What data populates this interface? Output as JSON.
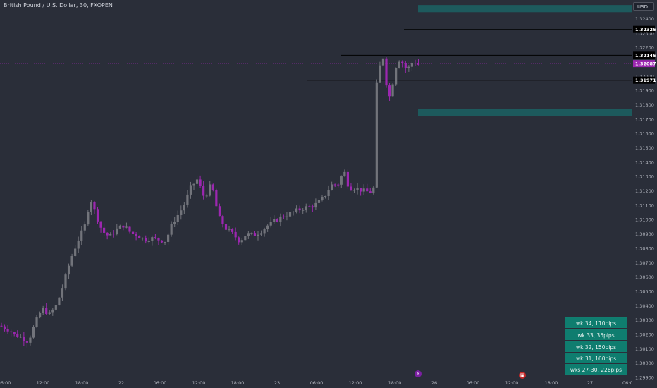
{
  "title": "British Pound / U.S. Dollar, 30, FXOPEN",
  "currency_button": "USD",
  "price_axis_ticks": [
    "1.32400",
    "1.32300",
    "1.32200",
    "1.32000",
    "1.31900",
    "1.31800",
    "1.31700",
    "1.31600",
    "1.31500",
    "1.31400",
    "1.31300",
    "1.31200",
    "1.31100",
    "1.31000",
    "1.30900",
    "1.30800",
    "1.30700",
    "1.30600",
    "1.30500",
    "1.30400",
    "1.30300",
    "1.30200",
    "1.30100",
    "1.30000",
    "1.29900"
  ],
  "time_axis_ticks": [
    "06:00",
    "12:00",
    "18:00",
    "22",
    "06:00",
    "12:00",
    "18:00",
    "23",
    "06:00",
    "12:00",
    "18:00",
    "26",
    "06:00",
    "12:00",
    "18:00",
    "27",
    "06:0"
  ],
  "price_labels": [
    {
      "text": "1.32325",
      "style": "level"
    },
    {
      "text": "1.32145",
      "style": "level"
    },
    {
      "text": "1.32087",
      "style": "current"
    },
    {
      "text": "1.31971",
      "style": "level"
    }
  ],
  "info_boxes": [
    "wk 34, 110pips",
    "wk 33, 35pips",
    "wk 32, 150pips",
    "wk 31, 160pips",
    "wks 27-30, 226pips"
  ],
  "colors": {
    "background": "#2a2e39",
    "up": "#72747b",
    "down": "#9c27b0",
    "zone": "#1d5a5d",
    "level": "#000000",
    "current": "#9c27b0"
  },
  "chart_data": {
    "type": "candlestick",
    "symbol": "GBPUSD",
    "interval": "30",
    "ylim": [
      1.299,
      1.3253
    ],
    "horizontal_levels": [
      1.32325,
      1.32145,
      1.31971
    ],
    "current_price": 1.32087,
    "zones": [
      [
        1.32495,
        1.32445
      ],
      [
        1.3177,
        1.3172
      ]
    ]
  }
}
